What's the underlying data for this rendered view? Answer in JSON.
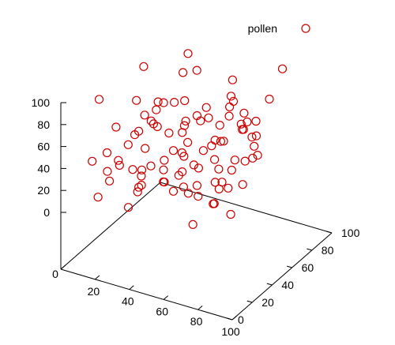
{
  "chart_data": {
    "type": "scatter",
    "legend": {
      "label": "pollen",
      "placement": "top-right"
    },
    "marker_color": "#cc0000",
    "x_ticks": [
      "0",
      "20",
      "40",
      "60",
      "80",
      "100"
    ],
    "y_ticks": [
      "0",
      "20",
      "40",
      "60",
      "80",
      "100"
    ],
    "z_ticks": [
      "0",
      "20",
      "40",
      "60",
      "80",
      "100"
    ],
    "xlim": [
      0,
      100
    ],
    "ylim": [
      0,
      100
    ],
    "zlim": [
      0,
      100
    ],
    "grid": false,
    "series": [
      {
        "name": "pollen",
        "points": [
          [
            9,
            16,
            38
          ],
          [
            22,
            11,
            30
          ],
          [
            43,
            7,
            39
          ],
          [
            30,
            33,
            46
          ],
          [
            28,
            30,
            12
          ],
          [
            65,
            26,
            24
          ],
          [
            45,
            48,
            66
          ],
          [
            72,
            31,
            36
          ],
          [
            69,
            18,
            42
          ],
          [
            84,
            38,
            34
          ],
          [
            91,
            14,
            29
          ],
          [
            87,
            25,
            68
          ],
          [
            15,
            70,
            45
          ],
          [
            19,
            65,
            58
          ],
          [
            68,
            51,
            13
          ],
          [
            30,
            85,
            76
          ],
          [
            24,
            40,
            18
          ],
          [
            35,
            43,
            82
          ],
          [
            79,
            60,
            72
          ],
          [
            65,
            47,
            14
          ],
          [
            26,
            83,
            91
          ],
          [
            13,
            15,
            8
          ],
          [
            45,
            92,
            44
          ],
          [
            70,
            63,
            58
          ],
          [
            48,
            51,
            25
          ],
          [
            12,
            47,
            30
          ],
          [
            84,
            14,
            67
          ],
          [
            68,
            11,
            40
          ],
          [
            72,
            68,
            48
          ],
          [
            32,
            22,
            16
          ],
          [
            73,
            7,
            17
          ],
          [
            50,
            83,
            45
          ],
          [
            92,
            38,
            82
          ],
          [
            77,
            28,
            78
          ],
          [
            11,
            57,
            62
          ],
          [
            67,
            36,
            63
          ],
          [
            42,
            52,
            80
          ],
          [
            33,
            11,
            11
          ],
          [
            82,
            53,
            56
          ],
          [
            38,
            25,
            40
          ],
          [
            45,
            41,
            22
          ],
          [
            36,
            41,
            12
          ],
          [
            30,
            57,
            41
          ],
          [
            62,
            15,
            71
          ],
          [
            50,
            38,
            72
          ],
          [
            18,
            28,
            29
          ],
          [
            28,
            36,
            73
          ],
          [
            54,
            78,
            69
          ],
          [
            61,
            8,
            41
          ],
          [
            77,
            90,
            95
          ],
          [
            66,
            58,
            23
          ],
          [
            70,
            89,
            65
          ],
          [
            64,
            77,
            51
          ],
          [
            67,
            23,
            53
          ],
          [
            20,
            12,
            54
          ],
          [
            86,
            37,
            57
          ],
          [
            52,
            83,
            79
          ],
          [
            30,
            71,
            85
          ],
          [
            37,
            27,
            79
          ],
          [
            47,
            41,
            62
          ],
          [
            40,
            12,
            42
          ],
          [
            65,
            10,
            59
          ],
          [
            62,
            53,
            66
          ],
          [
            17,
            54,
            98
          ],
          [
            41,
            53,
            28
          ],
          [
            17,
            49,
            43
          ],
          [
            72,
            29,
            18
          ],
          [
            61,
            79,
            56
          ],
          [
            27,
            9,
            83
          ],
          [
            29,
            64,
            63
          ],
          [
            19,
            14,
            35
          ],
          [
            26,
            13,
            49
          ],
          [
            33,
            80,
            40
          ],
          [
            58,
            4,
            71
          ],
          [
            50,
            27,
            58
          ],
          [
            68,
            37,
            10
          ],
          [
            57,
            83,
            41
          ],
          [
            60,
            20,
            35
          ],
          [
            64,
            72,
            48
          ],
          [
            57,
            5,
            61
          ],
          [
            58,
            55,
            49
          ],
          [
            56,
            77,
            66
          ],
          [
            56,
            31,
            65
          ],
          [
            66,
            84,
            16
          ],
          [
            17,
            45,
            43
          ],
          [
            76,
            31,
            38
          ],
          [
            49,
            64,
            58
          ],
          [
            39,
            26,
            78
          ],
          [
            73,
            67,
            30
          ],
          [
            53,
            49,
            69
          ],
          [
            39,
            79,
            51
          ],
          [
            59,
            62,
            43
          ],
          [
            56,
            58,
            28
          ],
          [
            36,
            35,
            67
          ],
          [
            36,
            42,
            11
          ],
          [
            28,
            24,
            33
          ],
          [
            57,
            45,
            47
          ],
          [
            9,
            23,
            89
          ]
        ]
      }
    ]
  }
}
